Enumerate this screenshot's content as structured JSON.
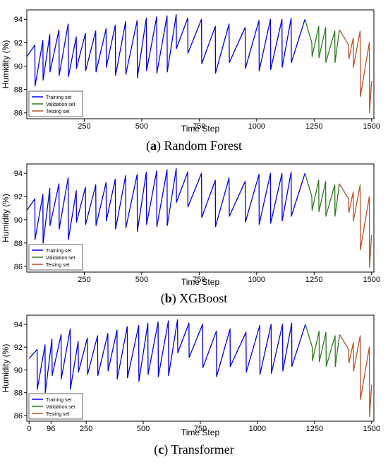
{
  "captions": [
    {
      "letter": "a",
      "name": "Random Forest"
    },
    {
      "letter": "b",
      "name": "XGBoost"
    },
    {
      "letter": "c",
      "name": "Transformer"
    }
  ],
  "colors": {
    "training": "#0000e6",
    "validation": "#2c7a1a",
    "testing": "#b5522a",
    "axis": "#000000"
  },
  "chart_data": [
    {
      "type": "line",
      "title": "",
      "xlabel": "Time Step",
      "ylabel": "Humidity (%)",
      "xlim": [
        0,
        1510
      ],
      "ylim": [
        85.5,
        94.8
      ],
      "xticks": [
        250,
        500,
        750,
        1000,
        1250,
        1500
      ],
      "yticks": [
        86,
        88,
        90,
        92,
        94
      ],
      "legend": {
        "placement": "bottom-left",
        "entries": [
          "Training set",
          "Validation set",
          "Testing set"
        ]
      },
      "series": [
        {
          "name": "Training set",
          "x": [
            0,
            35,
            36,
            70,
            71,
            100,
            101,
            140,
            141,
            180,
            181,
            215,
            216,
            255,
            256,
            300,
            301,
            345,
            346,
            385,
            386,
            430,
            431,
            480,
            481,
            520,
            521,
            565,
            566,
            610,
            611,
            650,
            651,
            700,
            701,
            760,
            761,
            820,
            821,
            880,
            881,
            950,
            951,
            1010,
            1011,
            1060,
            1061,
            1110,
            1111,
            1150,
            1151,
            1210
          ],
          "y": [
            90.8,
            91.8,
            88.3,
            92.2,
            88.8,
            92.7,
            89.5,
            93.1,
            89.2,
            93.6,
            89.1,
            92.5,
            89.8,
            92.8,
            89.6,
            93.0,
            89.5,
            93.2,
            89.9,
            93.5,
            89.2,
            93.8,
            89.3,
            93.9,
            89.0,
            94.1,
            89.6,
            94.2,
            89.4,
            94.3,
            89.5,
            94.4,
            91.5,
            94.1,
            91.1,
            94.0,
            90.2,
            93.4,
            89.4,
            93.6,
            90.3,
            93.3,
            89.8,
            93.9,
            89.6,
            94.0,
            89.7,
            94.0,
            89.9,
            94.1,
            90.3,
            94.0
          ]
        },
        {
          "name": "Validation set",
          "x": [
            1210,
            1240,
            1241,
            1270,
            1271,
            1300,
            1301,
            1340,
            1341,
            1360
          ],
          "y": [
            94.0,
            92.0,
            90.8,
            93.4,
            90.7,
            93.3,
            90.3,
            93.0,
            90.3,
            93.1
          ]
        },
        {
          "name": "Testing set",
          "x": [
            1360,
            1400,
            1401,
            1420,
            1421,
            1450,
            1451,
            1490,
            1491,
            1500
          ],
          "y": [
            93.1,
            91.8,
            90.6,
            92.4,
            89.9,
            93.0,
            87.4,
            92.0,
            86.0,
            88.7
          ]
        }
      ]
    },
    {
      "type": "line",
      "title": "",
      "xlabel": "Time Step",
      "ylabel": "Humidity (%)",
      "xlim": [
        0,
        1510
      ],
      "ylim": [
        85.5,
        94.8
      ],
      "xticks": [
        250,
        500,
        750,
        1000,
        1250,
        1500
      ],
      "yticks": [
        86,
        88,
        90,
        92,
        94
      ],
      "legend": {
        "placement": "bottom-left",
        "entries": [
          "Training set",
          "Validation set",
          "Testing set"
        ]
      },
      "series": [
        {
          "name": "Training set",
          "x": [
            0,
            35,
            36,
            70,
            71,
            100,
            101,
            140,
            141,
            180,
            181,
            215,
            216,
            255,
            256,
            300,
            301,
            345,
            346,
            385,
            386,
            430,
            431,
            480,
            481,
            520,
            521,
            565,
            566,
            610,
            611,
            650,
            651,
            700,
            701,
            760,
            761,
            820,
            821,
            880,
            881,
            950,
            951,
            1010,
            1011,
            1060,
            1061,
            1110,
            1111,
            1150,
            1151,
            1210
          ],
          "y": [
            90.8,
            91.8,
            88.3,
            92.2,
            88.0,
            92.7,
            89.5,
            93.1,
            89.2,
            93.6,
            88.3,
            92.5,
            89.8,
            92.8,
            89.6,
            93.0,
            89.5,
            93.2,
            89.9,
            93.5,
            89.2,
            93.8,
            89.3,
            93.9,
            89.0,
            94.1,
            89.6,
            94.2,
            89.4,
            94.3,
            89.5,
            94.4,
            91.5,
            94.1,
            91.1,
            94.0,
            90.2,
            93.4,
            89.4,
            93.6,
            90.3,
            93.3,
            89.8,
            93.9,
            89.6,
            94.0,
            89.7,
            94.0,
            89.9,
            94.1,
            90.3,
            94.0
          ]
        },
        {
          "name": "Validation set",
          "x": [
            1210,
            1240,
            1241,
            1270,
            1271,
            1300,
            1301,
            1340,
            1341,
            1360
          ],
          "y": [
            94.0,
            92.0,
            90.8,
            93.4,
            90.7,
            93.3,
            90.3,
            93.0,
            90.3,
            93.1
          ]
        },
        {
          "name": "Testing set",
          "x": [
            1360,
            1400,
            1401,
            1420,
            1421,
            1450,
            1451,
            1490,
            1491,
            1500
          ],
          "y": [
            93.1,
            91.8,
            90.6,
            92.4,
            89.9,
            93.0,
            87.4,
            92.0,
            85.9,
            88.7
          ]
        }
      ]
    },
    {
      "type": "line",
      "title": "",
      "xlabel": "Time Step",
      "ylabel": "Humidity (%)",
      "xlim": [
        -10,
        1510
      ],
      "ylim": [
        85.5,
        94.8
      ],
      "xticks": [
        0,
        96,
        250,
        500,
        750,
        1000,
        1250,
        1500
      ],
      "yticks": [
        86,
        88,
        90,
        92,
        94
      ],
      "legend": {
        "placement": "bottom-left",
        "entries": [
          "Training set",
          "Validation set",
          "Testing set"
        ]
      },
      "series": [
        {
          "name": "Training set",
          "x": [
            0,
            35,
            36,
            70,
            71,
            100,
            101,
            140,
            141,
            180,
            181,
            215,
            216,
            255,
            256,
            300,
            301,
            345,
            346,
            385,
            386,
            430,
            431,
            480,
            481,
            520,
            521,
            565,
            566,
            610,
            611,
            650,
            651,
            700,
            701,
            760,
            761,
            820,
            821,
            880,
            881,
            950,
            951,
            1010,
            1011,
            1060,
            1061,
            1110,
            1111,
            1150,
            1151,
            1210
          ],
          "y": [
            91.0,
            91.8,
            88.3,
            92.2,
            88.0,
            92.7,
            89.5,
            93.1,
            89.2,
            93.6,
            88.3,
            92.5,
            89.8,
            92.8,
            89.6,
            93.0,
            89.5,
            93.2,
            89.9,
            93.5,
            89.2,
            93.8,
            89.3,
            93.9,
            89.0,
            94.1,
            89.6,
            94.2,
            89.4,
            94.3,
            89.5,
            94.4,
            91.5,
            94.1,
            91.1,
            94.0,
            90.2,
            93.4,
            89.4,
            93.6,
            90.3,
            93.3,
            89.8,
            93.9,
            89.6,
            94.0,
            89.7,
            94.0,
            89.9,
            94.1,
            90.3,
            94.0
          ]
        },
        {
          "name": "Validation set",
          "x": [
            1210,
            1240,
            1241,
            1270,
            1271,
            1300,
            1301,
            1340,
            1341,
            1360
          ],
          "y": [
            94.0,
            92.0,
            90.8,
            93.4,
            90.7,
            93.3,
            90.3,
            93.0,
            90.3,
            93.1
          ]
        },
        {
          "name": "Testing set",
          "x": [
            1360,
            1400,
            1401,
            1420,
            1421,
            1450,
            1451,
            1490,
            1491,
            1500
          ],
          "y": [
            93.1,
            91.8,
            90.6,
            92.4,
            89.9,
            93.0,
            87.4,
            92.0,
            85.9,
            88.7
          ]
        }
      ]
    }
  ]
}
